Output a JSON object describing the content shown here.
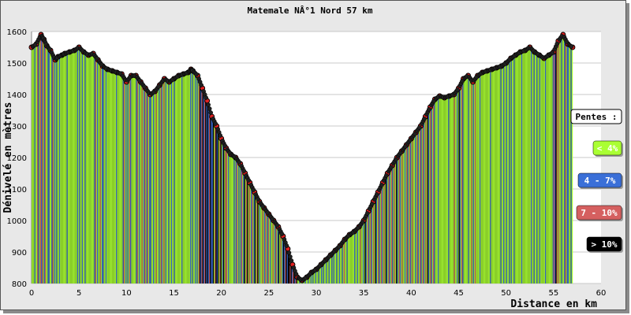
{
  "chart_data": {
    "type": "area",
    "title": "Matemale NÂ°1 Nord 57 km",
    "xlabel": "Distance en km",
    "ylabel": "Dénivelé en mètres",
    "xlim": [
      0,
      60
    ],
    "ylim": [
      800,
      1600
    ],
    "x_ticks": [
      0,
      5,
      10,
      15,
      20,
      25,
      30,
      35,
      40,
      45,
      50,
      55,
      60
    ],
    "y_ticks": [
      800,
      900,
      1000,
      1100,
      1200,
      1300,
      1400,
      1500,
      1600
    ],
    "grid": true,
    "legend_title": "Pentes :",
    "legend_position": "right",
    "legend": [
      {
        "label": "< 4%",
        "color": "#aaff33",
        "text_color": "#ffffff"
      },
      {
        "label": "4 - 7%",
        "color": "#3a6fd8",
        "text_color": "#ffffff"
      },
      {
        "label": "7 - 10%",
        "color": "#d56060",
        "text_color": "#ffffff"
      },
      {
        "label": "> 10%",
        "color": "#000000",
        "text_color": "#ffffff"
      }
    ],
    "series": [
      {
        "x": [
          0,
          0.5,
          1,
          1.3,
          1.6,
          2,
          2.5,
          2.8,
          3.2,
          3.5,
          4,
          4.5,
          5,
          5.5,
          6,
          6.5,
          7,
          7.5,
          8,
          8.5,
          9,
          9.5,
          10,
          10.5,
          11,
          11.5,
          12,
          12.5,
          13,
          13.5,
          14,
          14.5,
          15,
          15.5,
          16,
          16.5,
          16.8,
          17,
          17.5,
          18,
          18.5,
          19,
          19.5,
          20,
          20.5,
          21,
          21.5,
          22,
          22.5,
          23,
          23.5,
          24,
          24.5,
          25,
          25.5,
          26,
          26.5,
          27,
          27.5,
          28,
          28.5,
          29,
          29.5,
          30,
          30.5,
          31,
          31.5,
          32,
          32.5,
          33,
          33.5,
          34,
          34.5,
          35,
          35.5,
          36,
          36.5,
          37,
          37.5,
          38,
          38.5,
          39,
          39.5,
          40,
          40.5,
          41,
          41.5,
          42,
          42.5,
          43,
          43.5,
          44,
          44.5,
          45,
          45.5,
          46,
          46.5,
          47,
          47.5,
          48,
          48.5,
          49,
          49.5,
          50,
          50.5,
          51,
          51.5,
          52,
          52.5,
          53,
          53.5,
          54,
          54.5,
          55,
          55.5,
          56,
          56.5,
          57
        ],
        "y": [
          1550,
          1560,
          1590,
          1575,
          1555,
          1540,
          1510,
          1520,
          1525,
          1530,
          1535,
          1540,
          1550,
          1535,
          1525,
          1530,
          1510,
          1490,
          1480,
          1475,
          1470,
          1465,
          1440,
          1460,
          1460,
          1440,
          1420,
          1400,
          1410,
          1430,
          1450,
          1440,
          1450,
          1460,
          1465,
          1470,
          1480,
          1475,
          1460,
          1420,
          1380,
          1330,
          1300,
          1260,
          1230,
          1210,
          1200,
          1180,
          1150,
          1120,
          1090,
          1060,
          1040,
          1020,
          1000,
          980,
          950,
          910,
          860,
          820,
          810,
          820,
          835,
          845,
          860,
          875,
          890,
          905,
          920,
          940,
          955,
          965,
          980,
          1000,
          1030,
          1060,
          1090,
          1120,
          1150,
          1175,
          1200,
          1220,
          1240,
          1260,
          1280,
          1300,
          1330,
          1360,
          1385,
          1395,
          1390,
          1395,
          1400,
          1420,
          1450,
          1460,
          1440,
          1460,
          1470,
          1475,
          1480,
          1485,
          1490,
          1500,
          1515,
          1525,
          1535,
          1540,
          1550,
          1535,
          1525,
          1515,
          1525,
          1535,
          1570,
          1590,
          1560,
          1550
        ]
      }
    ]
  }
}
